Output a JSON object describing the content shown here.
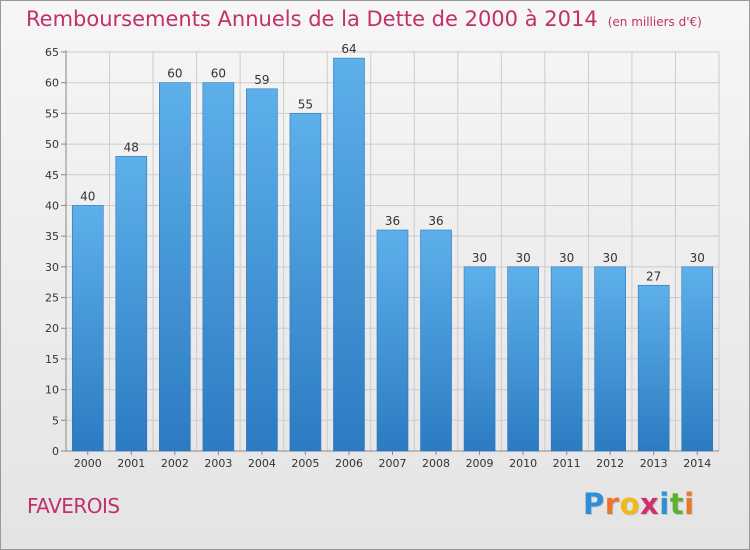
{
  "chart_data": {
    "type": "bar",
    "title": "Remboursements Annuels de la Dette de 2000 à 2014",
    "subtitle": "(en milliers d'€)",
    "categories": [
      "2000",
      "2001",
      "2002",
      "2003",
      "2004",
      "2005",
      "2006",
      "2007",
      "2008",
      "2009",
      "2010",
      "2011",
      "2012",
      "2013",
      "2014"
    ],
    "values": [
      40,
      48,
      60,
      60,
      59,
      55,
      64,
      36,
      36,
      30,
      30,
      30,
      30,
      27,
      30
    ],
    "ylim": [
      0,
      65
    ],
    "yticks": [
      0,
      5,
      10,
      15,
      20,
      25,
      30,
      35,
      40,
      45,
      50,
      55,
      60,
      65
    ],
    "grid": true,
    "bar_color_top": "#5eb0ea",
    "bar_color_bottom": "#2c7bc2"
  },
  "commune": "FAVEROIS",
  "brand": {
    "letters": [
      "P",
      "r",
      "o",
      "x",
      "i",
      "t",
      "i"
    ],
    "colors": [
      "#2d8fd8",
      "#e9762a",
      "#f2b81a",
      "#cf2f6e",
      "#2d8fd8",
      "#5cb230",
      "#e9762a"
    ]
  },
  "colors": {
    "accent": "#c0306a"
  }
}
